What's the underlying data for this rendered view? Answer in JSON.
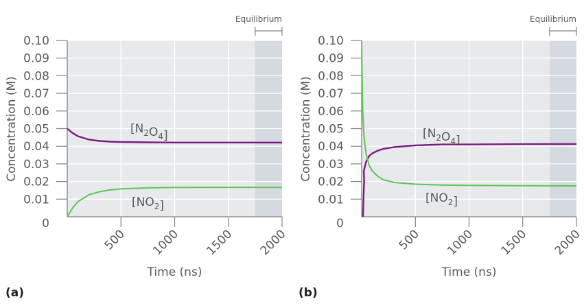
{
  "chart_data": [
    {
      "type": "line",
      "panel_label": "(a)",
      "xlabel": "Time (ns)",
      "ylabel": "Concentration (M)",
      "xlim": [
        0,
        2000
      ],
      "ylim": [
        0,
        0.1
      ],
      "xticks": [
        "500",
        "1000",
        "1500",
        "2000"
      ],
      "xtick_values": [
        500,
        1000,
        1500,
        2000
      ],
      "yticks": [
        "0",
        "0.01",
        "0.02",
        "0.03",
        "0.04",
        "0.05",
        "0.06",
        "0.07",
        "0.08",
        "0.09",
        "0.10"
      ],
      "ytick_values": [
        0,
        0.01,
        0.02,
        0.03,
        0.04,
        0.05,
        0.06,
        0.07,
        0.08,
        0.09,
        0.1
      ],
      "grid": true,
      "shaded_region": {
        "label": "Equilibrium",
        "x": [
          1750,
          2000
        ]
      },
      "x": [
        0,
        50,
        100,
        200,
        300,
        400,
        500,
        750,
        1000,
        1500,
        2000
      ],
      "series": [
        {
          "name": "[N2O4]",
          "color": "#7b1a7e",
          "values": [
            0.05,
            0.0475,
            0.0457,
            0.0438,
            0.043,
            0.0426,
            0.0424,
            0.0422,
            0.0421,
            0.0421,
            0.0421
          ]
        },
        {
          "name": "[NO2]",
          "color": "#5cc653",
          "values": [
            0.0,
            0.005,
            0.0086,
            0.0124,
            0.0142,
            0.0152,
            0.0158,
            0.0164,
            0.0166,
            0.0167,
            0.0167
          ]
        }
      ]
    },
    {
      "type": "line",
      "panel_label": "(b)",
      "xlabel": "Time (ns)",
      "ylabel": "Concentration (M)",
      "xlim": [
        0,
        2000
      ],
      "ylim": [
        0,
        0.1
      ],
      "xticks": [
        "500",
        "1000",
        "1500",
        "2000"
      ],
      "xtick_values": [
        500,
        1000,
        1500,
        2000
      ],
      "yticks": [
        "0",
        "0.01",
        "0.02",
        "0.03",
        "0.04",
        "0.05",
        "0.06",
        "0.07",
        "0.08",
        "0.09",
        "0.10"
      ],
      "ytick_values": [
        0,
        0.01,
        0.02,
        0.03,
        0.04,
        0.05,
        0.06,
        0.07,
        0.08,
        0.09,
        0.1
      ],
      "grid": true,
      "shaded_region": {
        "label": "Equilibrium",
        "x": [
          1750,
          2000
        ]
      },
      "x": [
        0,
        5,
        10,
        20,
        40,
        70,
        100,
        150,
        200,
        300,
        400,
        500,
        750,
        1000,
        1500,
        2000
      ],
      "series": [
        {
          "name": "[N2O4]",
          "color": "#7b1a7e",
          "values": [
            0.0,
            0.012,
            0.02,
            0.026,
            0.031,
            0.0345,
            0.036,
            0.0375,
            0.0385,
            0.0395,
            0.04,
            0.0405,
            0.041,
            0.041,
            0.0412,
            0.0413
          ]
        },
        {
          "name": "[NO2]",
          "color": "#5cc653",
          "values": [
            0.1,
            0.075,
            0.06,
            0.047,
            0.036,
            0.029,
            0.026,
            0.023,
            0.021,
            0.0195,
            0.019,
            0.0185,
            0.018,
            0.0178,
            0.0176,
            0.0175
          ]
        }
      ]
    }
  ]
}
